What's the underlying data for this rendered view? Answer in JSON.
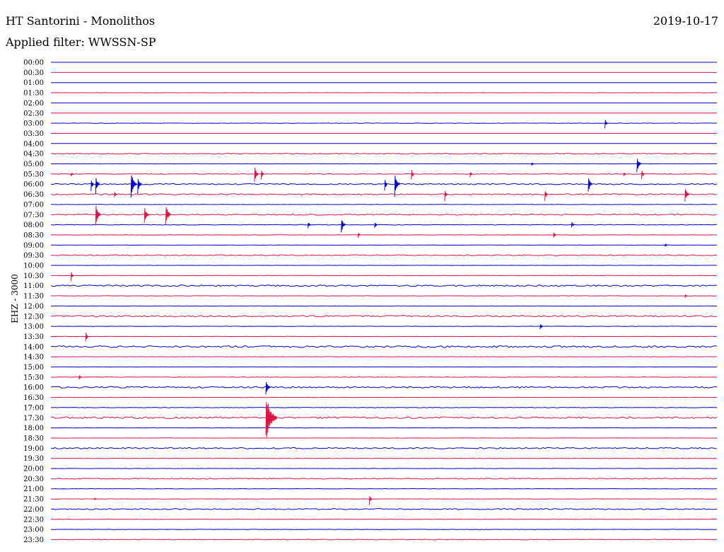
{
  "header": {
    "station": "HT Santorini - Monolithos",
    "date": "2019-10-17",
    "filter_label": "Applied filter: WWSSN-SP",
    "channel": "EHZ - 3000"
  },
  "chart_data": {
    "type": "line",
    "title": "HT Santorini - Monolithos",
    "ylabel": "EHZ - 3000",
    "colors": [
      "#0000cc",
      "#dd1144"
    ],
    "rows": [
      "00:00",
      "00:30",
      "01:00",
      "01:30",
      "02:00",
      "02:30",
      "03:00",
      "03:30",
      "04:00",
      "04:30",
      "05:00",
      "05:30",
      "06:00",
      "06:30",
      "07:00",
      "07:30",
      "08:00",
      "08:30",
      "09:00",
      "09:30",
      "10:00",
      "10:30",
      "11:00",
      "11:30",
      "12:00",
      "12:30",
      "13:00",
      "13:30",
      "14:00",
      "14:30",
      "15:00",
      "15:30",
      "16:00",
      "16:30",
      "17:00",
      "17:30",
      "18:00",
      "18:30",
      "19:00",
      "19:30",
      "20:00",
      "20:30",
      "21:00",
      "21:30",
      "22:00",
      "22:30",
      "23:00",
      "23:30"
    ],
    "noise": [
      0,
      0,
      0,
      0.2,
      0,
      0,
      0.4,
      0,
      0,
      0.8,
      0.2,
      0.5,
      1.0,
      1.0,
      0.3,
      1.0,
      0.5,
      0.3,
      0.2,
      0.8,
      0.2,
      0.3,
      1.2,
      0.3,
      0.2,
      1.4,
      0.3,
      0.3,
      1.6,
      0.2,
      0.2,
      0.4,
      1.4,
      0.2,
      0.4,
      1.6,
      0.2,
      0.2,
      1.2,
      0.3,
      0.3,
      0.8,
      0.3,
      0.3,
      1.0,
      0.3,
      0.3,
      0.6
    ],
    "events": [
      {
        "row": "03:00",
        "t": 0.83,
        "amp": 8
      },
      {
        "row": "05:00",
        "t": 0.72,
        "amp": 3
      },
      {
        "row": "05:00",
        "t": 0.878,
        "amp": 14
      },
      {
        "row": "05:30",
        "t": 0.03,
        "amp": 3
      },
      {
        "row": "05:30",
        "t": 0.305,
        "amp": 14
      },
      {
        "row": "05:30",
        "t": 0.315,
        "amp": 10
      },
      {
        "row": "05:30",
        "t": 0.54,
        "amp": 10
      },
      {
        "row": "05:30",
        "t": 0.628,
        "amp": 5
      },
      {
        "row": "05:30",
        "t": 0.858,
        "amp": 4
      },
      {
        "row": "05:30",
        "t": 0.885,
        "amp": 8
      },
      {
        "row": "06:00",
        "t": 0.06,
        "amp": 10
      },
      {
        "row": "06:00",
        "t": 0.067,
        "amp": 14
      },
      {
        "row": "06:00",
        "t": 0.12,
        "amp": 20
      },
      {
        "row": "06:00",
        "t": 0.13,
        "amp": 14
      },
      {
        "row": "06:00",
        "t": 0.5,
        "amp": 10
      },
      {
        "row": "06:00",
        "t": 0.515,
        "amp": 18
      },
      {
        "row": "06:00",
        "t": 0.805,
        "amp": 14
      },
      {
        "row": "06:30",
        "t": 0.095,
        "amp": 5
      },
      {
        "row": "06:30",
        "t": 0.59,
        "amp": 10
      },
      {
        "row": "06:30",
        "t": 0.74,
        "amp": 10
      },
      {
        "row": "06:30",
        "t": 0.95,
        "amp": 14
      },
      {
        "row": "07:30",
        "t": 0.067,
        "amp": 18
      },
      {
        "row": "07:30",
        "t": 0.14,
        "amp": 16
      },
      {
        "row": "07:30",
        "t": 0.172,
        "amp": 18
      },
      {
        "row": "08:00",
        "t": 0.385,
        "amp": 6
      },
      {
        "row": "08:00",
        "t": 0.435,
        "amp": 14
      },
      {
        "row": "08:00",
        "t": 0.485,
        "amp": 6
      },
      {
        "row": "08:00",
        "t": 0.78,
        "amp": 6
      },
      {
        "row": "08:30",
        "t": 0.46,
        "amp": 5
      },
      {
        "row": "08:30",
        "t": 0.753,
        "amp": 6
      },
      {
        "row": "09:00",
        "t": 0.92,
        "amp": 3
      },
      {
        "row": "10:30",
        "t": 0.03,
        "amp": 8
      },
      {
        "row": "11:30",
        "t": 0.95,
        "amp": 3
      },
      {
        "row": "13:00",
        "t": 0.733,
        "amp": 6
      },
      {
        "row": "13:30",
        "t": 0.052,
        "amp": 9
      },
      {
        "row": "15:30",
        "t": 0.042,
        "amp": 4
      },
      {
        "row": "16:00",
        "t": 0.322,
        "amp": 14
      },
      {
        "row": "17:30",
        "t": 0.322,
        "amp": 38
      },
      {
        "row": "21:30",
        "t": 0.065,
        "amp": 2
      },
      {
        "row": "21:30",
        "t": 0.477,
        "amp": 10
      }
    ]
  }
}
